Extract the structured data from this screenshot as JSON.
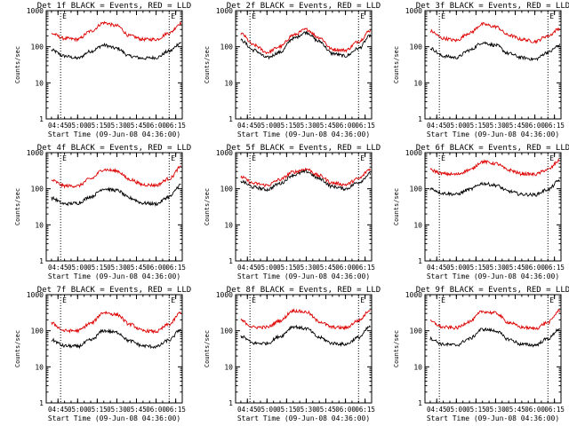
{
  "colors": {
    "events": "#000000",
    "lld": "#dd0000",
    "axis": "#000000",
    "background": "#ffffff"
  },
  "chart_data": [
    {
      "type": "line",
      "title": "Det 1f BLACK = Events, RED = LLD",
      "xlabel": "Start Time (09-Jun-08 04:36:00)",
      "ylabel": "Counts/sec",
      "yscale": "log",
      "ylim": [
        1,
        1000
      ],
      "y_ticks": [
        "1",
        "10",
        "100",
        "1000"
      ],
      "x_ticks": [
        "04:45",
        "05:00",
        "05:15",
        "05:30",
        "05:45",
        "06:00",
        "06:15"
      ],
      "xlim": [
        "04:36",
        "06:20"
      ],
      "markers": [
        {
          "time": "04:47",
          "label": "E"
        },
        {
          "time": "06:10",
          "label": "E"
        }
      ],
      "x": [
        "04:40",
        "04:50",
        "05:00",
        "05:10",
        "05:20",
        "05:30",
        "05:40",
        "05:50",
        "06:00",
        "06:10",
        "06:19"
      ],
      "series": [
        {
          "color": "black",
          "values": [
            80,
            55,
            48,
            75,
            110,
            90,
            55,
            48,
            50,
            75,
            130
          ]
        },
        {
          "color": "red",
          "values": [
            230,
            170,
            160,
            270,
            460,
            380,
            200,
            160,
            160,
            240,
            450
          ]
        }
      ]
    },
    {
      "type": "line",
      "title": "Det 2f BLACK = Events, RED = LLD",
      "xlabel": "Start Time (09-Jun-08 04:36:00)",
      "ylabel": "Counts/sec",
      "yscale": "log",
      "ylim": [
        1,
        1000
      ],
      "y_ticks": [
        "1",
        "10",
        "100",
        "1000"
      ],
      "x_ticks": [
        "04:45",
        "05:00",
        "05:15",
        "05:30",
        "05:45",
        "06:00",
        "06:15"
      ],
      "xlim": [
        "04:36",
        "06:20"
      ],
      "markers": [
        {
          "time": "04:47",
          "label": "E"
        },
        {
          "time": "06:10",
          "label": "E"
        }
      ],
      "x": [
        "04:40",
        "04:50",
        "05:00",
        "05:10",
        "05:20",
        "05:30",
        "05:40",
        "05:50",
        "06:00",
        "06:10",
        "06:19"
      ],
      "series": [
        {
          "color": "black",
          "values": [
            150,
            80,
            50,
            70,
            170,
            250,
            140,
            65,
            55,
            90,
            200
          ]
        },
        {
          "color": "red",
          "values": [
            230,
            110,
            70,
            100,
            210,
            300,
            180,
            85,
            80,
            140,
            280
          ]
        }
      ]
    },
    {
      "type": "line",
      "title": "Det 3f BLACK = Events, RED = LLD",
      "xlabel": "Start Time (09-Jun-08 04:36:00)",
      "ylabel": "Counts/sec",
      "yscale": "log",
      "ylim": [
        1,
        1000
      ],
      "y_ticks": [
        "1",
        "10",
        "100",
        "1000"
      ],
      "x_ticks": [
        "04:45",
        "05:00",
        "05:15",
        "05:30",
        "05:45",
        "06:00",
        "06:15"
      ],
      "xlim": [
        "04:36",
        "06:20"
      ],
      "markers": [
        {
          "time": "04:47",
          "label": "E"
        },
        {
          "time": "06:10",
          "label": "E"
        }
      ],
      "x": [
        "04:40",
        "04:50",
        "05:00",
        "05:10",
        "05:20",
        "05:30",
        "05:40",
        "05:50",
        "06:00",
        "06:10",
        "06:19"
      ],
      "series": [
        {
          "color": "black",
          "values": [
            90,
            55,
            50,
            80,
            130,
            110,
            65,
            50,
            45,
            70,
            110
          ]
        },
        {
          "color": "red",
          "values": [
            270,
            170,
            150,
            240,
            420,
            360,
            210,
            160,
            140,
            200,
            320
          ]
        }
      ]
    },
    {
      "type": "line",
      "title": "Det 4f BLACK = Events, RED = LLD",
      "xlabel": "Start Time (09-Jun-08 04:36:00)",
      "ylabel": "Counts/sec",
      "yscale": "log",
      "ylim": [
        1,
        1000
      ],
      "y_ticks": [
        "1",
        "10",
        "100",
        "1000"
      ],
      "x_ticks": [
        "04:45",
        "05:00",
        "05:15",
        "05:30",
        "05:45",
        "06:00",
        "06:15"
      ],
      "xlim": [
        "04:36",
        "06:20"
      ],
      "markers": [
        {
          "time": "04:47",
          "label": "E"
        },
        {
          "time": "06:10",
          "label": "E"
        }
      ],
      "x": [
        "04:40",
        "04:50",
        "05:00",
        "05:10",
        "05:20",
        "05:30",
        "05:40",
        "05:50",
        "06:00",
        "06:10",
        "06:19"
      ],
      "series": [
        {
          "color": "black",
          "values": [
            55,
            38,
            40,
            60,
            100,
            90,
            55,
            40,
            38,
            60,
            130
          ]
        },
        {
          "color": "red",
          "values": [
            170,
            120,
            120,
            190,
            340,
            310,
            180,
            130,
            125,
            190,
            400
          ]
        }
      ]
    },
    {
      "type": "line",
      "title": "Det 5f BLACK = Events, RED = LLD",
      "xlabel": "Start Time (09-Jun-08 04:36:00)",
      "ylabel": "Counts/sec",
      "yscale": "log",
      "ylim": [
        1,
        1000
      ],
      "y_ticks": [
        "1",
        "10",
        "100",
        "1000"
      ],
      "x_ticks": [
        "04:45",
        "05:00",
        "05:15",
        "05:30",
        "05:45",
        "06:00",
        "06:15"
      ],
      "xlim": [
        "04:36",
        "06:20"
      ],
      "markers": [
        {
          "time": "04:47",
          "label": "E"
        },
        {
          "time": "06:10",
          "label": "E"
        }
      ],
      "x": [
        "04:40",
        "04:50",
        "05:00",
        "05:10",
        "05:20",
        "05:30",
        "05:40",
        "05:50",
        "06:00",
        "06:10",
        "06:19"
      ],
      "series": [
        {
          "color": "black",
          "values": [
            160,
            110,
            95,
            140,
            240,
            300,
            190,
            115,
            100,
            150,
            260
          ]
        },
        {
          "color": "red",
          "values": [
            210,
            140,
            125,
            180,
            290,
            350,
            230,
            145,
            130,
            190,
            350
          ]
        }
      ]
    },
    {
      "type": "line",
      "title": "Det 6f BLACK = Events, RED = LLD",
      "xlabel": "Start Time (09-Jun-08 04:36:00)",
      "ylabel": "Counts/sec",
      "yscale": "log",
      "ylim": [
        1,
        1000
      ],
      "y_ticks": [
        "1",
        "10",
        "100",
        "1000"
      ],
      "x_ticks": [
        "04:45",
        "05:00",
        "05:15",
        "05:30",
        "05:45",
        "06:00",
        "06:15"
      ],
      "xlim": [
        "04:36",
        "06:20"
      ],
      "markers": [
        {
          "time": "04:47",
          "label": "E"
        },
        {
          "time": "06:10",
          "label": "E"
        }
      ],
      "x": [
        "04:40",
        "04:50",
        "05:00",
        "05:10",
        "05:20",
        "05:30",
        "05:40",
        "05:50",
        "06:00",
        "06:10",
        "06:19"
      ],
      "series": [
        {
          "color": "black",
          "values": [
            100,
            75,
            70,
            95,
            140,
            125,
            85,
            70,
            68,
            95,
            170
          ]
        },
        {
          "color": "red",
          "values": [
            330,
            260,
            250,
            330,
            560,
            500,
            330,
            260,
            250,
            340,
            600
          ]
        }
      ]
    },
    {
      "type": "line",
      "title": "Det 7f BLACK = Events, RED = LLD",
      "xlabel": "Start Time (09-Jun-08 04:36:00)",
      "ylabel": "Counts/sec",
      "yscale": "log",
      "ylim": [
        1,
        1000
      ],
      "y_ticks": [
        "1",
        "10",
        "100",
        "1000"
      ],
      "x_ticks": [
        "04:45",
        "05:00",
        "05:15",
        "05:30",
        "05:45",
        "06:00",
        "06:15"
      ],
      "xlim": [
        "04:36",
        "06:20"
      ],
      "markers": [
        {
          "time": "04:47",
          "label": "E"
        },
        {
          "time": "06:10",
          "label": "E"
        }
      ],
      "x": [
        "04:40",
        "04:50",
        "05:00",
        "05:10",
        "05:20",
        "05:30",
        "05:40",
        "05:50",
        "06:00",
        "06:10",
        "06:19"
      ],
      "series": [
        {
          "color": "black",
          "values": [
            55,
            38,
            37,
            55,
            100,
            90,
            52,
            38,
            36,
            55,
            110
          ]
        },
        {
          "color": "red",
          "values": [
            160,
            100,
            100,
            160,
            320,
            280,
            150,
            100,
            95,
            150,
            320
          ]
        }
      ]
    },
    {
      "type": "line",
      "title": "Det 8f BLACK = Events, RED = LLD",
      "xlabel": "Start Time (09-Jun-08 04:36:00)",
      "ylabel": "Counts/sec",
      "yscale": "log",
      "ylim": [
        1,
        1000
      ],
      "y_ticks": [
        "1",
        "10",
        "100",
        "1000"
      ],
      "x_ticks": [
        "04:45",
        "05:00",
        "05:15",
        "05:30",
        "05:45",
        "06:00",
        "06:15"
      ],
      "xlim": [
        "04:36",
        "06:20"
      ],
      "markers": [
        {
          "time": "04:47",
          "label": "E"
        },
        {
          "time": "06:10",
          "label": "E"
        }
      ],
      "x": [
        "04:40",
        "04:50",
        "05:00",
        "05:10",
        "05:20",
        "05:30",
        "05:40",
        "05:50",
        "06:00",
        "06:10",
        "06:19"
      ],
      "series": [
        {
          "color": "black",
          "values": [
            70,
            45,
            45,
            70,
            130,
            115,
            65,
            45,
            42,
            65,
            130
          ]
        },
        {
          "color": "red",
          "values": [
            190,
            125,
            125,
            190,
            360,
            330,
            180,
            125,
            120,
            190,
            380
          ]
        }
      ]
    },
    {
      "type": "line",
      "title": "Det 9f BLACK = Events, RED = LLD",
      "xlabel": "Start Time (09-Jun-08 04:36:00)",
      "ylabel": "Counts/sec",
      "yscale": "log",
      "ylim": [
        1,
        1000
      ],
      "y_ticks": [
        "1",
        "10",
        "100",
        "1000"
      ],
      "x_ticks": [
        "04:45",
        "05:00",
        "05:15",
        "05:30",
        "05:45",
        "06:00",
        "06:15"
      ],
      "xlim": [
        "04:36",
        "06:20"
      ],
      "markers": [
        {
          "time": "04:47",
          "label": "E"
        },
        {
          "time": "06:10",
          "label": "E"
        }
      ],
      "x": [
        "04:40",
        "04:50",
        "05:00",
        "05:10",
        "05:20",
        "05:30",
        "05:40",
        "05:50",
        "06:00",
        "06:10",
        "06:19"
      ],
      "series": [
        {
          "color": "black",
          "values": [
            60,
            42,
            40,
            60,
            110,
            100,
            58,
            42,
            40,
            60,
            115
          ]
        },
        {
          "color": "red",
          "values": [
            180,
            125,
            120,
            180,
            340,
            310,
            170,
            125,
            115,
            170,
            360
          ]
        }
      ]
    }
  ]
}
